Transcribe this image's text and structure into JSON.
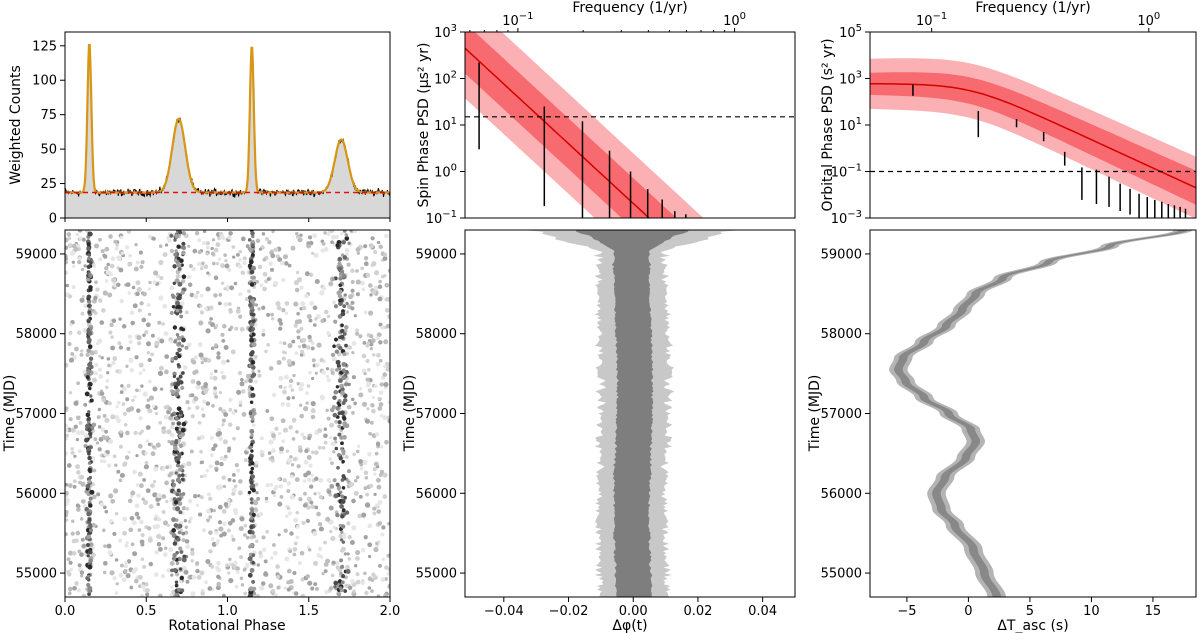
{
  "chart_data": [
    {
      "id": "pulse_profile",
      "type": "line",
      "ylabel": "Weighted Counts",
      "xlim": [
        0.0,
        2.0
      ],
      "ylim": [
        0,
        135
      ],
      "yticks": [
        0,
        25,
        50,
        75,
        100,
        125
      ],
      "background_level": 18.5,
      "peaks": [
        {
          "phase": 0.15,
          "height": 127,
          "width": 0.012
        },
        {
          "phase": 0.7,
          "height": 72,
          "width": 0.04
        },
        {
          "phase": 1.15,
          "height": 125,
          "width": 0.012
        },
        {
          "phase": 1.7,
          "height": 57,
          "width": 0.04
        }
      ],
      "colors": {
        "data": "#000000",
        "model": "#d89614",
        "fill": "#d8d8d8",
        "background_line": "#e01010"
      }
    },
    {
      "id": "spin_psd",
      "type": "line",
      "ylabel": "Spin Phase PSD (μs² yr)",
      "top_xlabel": "Frequency (1/yr)",
      "xscale": "log",
      "yscale": "log",
      "xlim": [
        0.057,
        1.9
      ],
      "ylim": [
        0.1,
        1000
      ],
      "top_ticks": [
        "10^-1",
        "10^0"
      ],
      "yticks": [
        "10^-1",
        "10^0",
        "10^1",
        "10^2",
        "10^3"
      ],
      "noise_level": 15,
      "model": {
        "amplitude_at_0_1": 40,
        "slope": -4.3,
        "outer_band_factor": 12,
        "inner_band_factor": 3.5
      },
      "points": [
        {
          "f": 0.0662,
          "lo": 3,
          "hi": 220
        },
        {
          "f": 0.1324,
          "lo": 0.18,
          "hi": 25
        },
        {
          "f": 0.1986,
          "lo": 0.1,
          "hi": 12
        },
        {
          "f": 0.2648,
          "lo": 0.1,
          "hi": 2.8
        },
        {
          "f": 0.331,
          "lo": 0.1,
          "hi": 1.0
        },
        {
          "f": 0.3972,
          "lo": 0.1,
          "hi": 0.42
        },
        {
          "f": 0.4634,
          "lo": 0.1,
          "hi": 0.25
        },
        {
          "f": 0.5296,
          "lo": 0.1,
          "hi": 0.14
        },
        {
          "f": 0.5958,
          "lo": 0.1,
          "hi": 0.12
        }
      ]
    },
    {
      "id": "orbital_psd",
      "type": "line",
      "ylabel": "Orbital Phase PSD (s² yr)",
      "top_xlabel": "Frequency (1/yr)",
      "xscale": "log",
      "yscale": "log",
      "xlim": [
        0.052,
        1.65
      ],
      "ylim": [
        0.001,
        100000
      ],
      "top_ticks": [
        "10^-1",
        "10^0"
      ],
      "yticks": [
        "10^-3",
        "10^-1",
        "10^1",
        "10^3",
        "10^5"
      ],
      "noise_level": 0.1,
      "model": {
        "low_freq_level": 600,
        "knee": 0.15,
        "slope": -4.3
      },
      "points": [
        {
          "f": 0.082,
          "lo": 180,
          "hi": 550
        },
        {
          "f": 0.164,
          "lo": 3,
          "hi": 40
        },
        {
          "f": 0.246,
          "lo": 8,
          "hi": 18
        },
        {
          "f": 0.328,
          "lo": 2,
          "hi": 5
        },
        {
          "f": 0.41,
          "lo": 0.18,
          "hi": 0.7
        },
        {
          "f": 0.492,
          "lo": 0.006,
          "hi": 0.15
        },
        {
          "f": 0.574,
          "lo": 0.004,
          "hi": 0.12
        },
        {
          "f": 0.656,
          "lo": 0.003,
          "hi": 0.06
        },
        {
          "f": 0.738,
          "lo": 0.002,
          "hi": 0.03
        },
        {
          "f": 0.82,
          "lo": 0.0014,
          "hi": 0.018
        },
        {
          "f": 0.902,
          "lo": 0.001,
          "hi": 0.011
        },
        {
          "f": 0.984,
          "lo": 0.001,
          "hi": 0.008
        },
        {
          "f": 1.066,
          "lo": 0.001,
          "hi": 0.006
        },
        {
          "f": 1.148,
          "lo": 0.001,
          "hi": 0.005
        },
        {
          "f": 1.23,
          "lo": 0.001,
          "hi": 0.004
        },
        {
          "f": 1.312,
          "lo": 0.001,
          "hi": 0.0035
        },
        {
          "f": 1.394,
          "lo": 0.001,
          "hi": 0.003
        },
        {
          "f": 1.476,
          "lo": 0.001,
          "hi": 0.0025
        }
      ]
    },
    {
      "id": "phaseogram",
      "type": "scatter",
      "xlabel": "Rotational Phase",
      "ylabel": "Time (MJD)",
      "xlim": [
        0.0,
        2.0
      ],
      "ylim": [
        54700,
        59300
      ],
      "xticks": [
        "0.0",
        "0.5",
        "1.0",
        "1.5",
        "2.0"
      ],
      "yticks": [
        55000,
        56000,
        57000,
        58000,
        59000
      ],
      "peak_phases": [
        0.15,
        0.7,
        1.15,
        1.7
      ],
      "gap_mjd": 58200
    },
    {
      "id": "spin_residuals",
      "type": "area",
      "xlabel": "Δφ(t)",
      "ylabel": "Time (MJD)",
      "xlim": [
        -0.052,
        0.05
      ],
      "ylim": [
        54700,
        59300
      ],
      "xticks": [
        "−0.04",
        "−0.02",
        "0.00",
        "0.02",
        "0.04"
      ],
      "yticks": [
        55000,
        56000,
        57000,
        58000,
        59000
      ],
      "inner_halfwidth": 0.0055,
      "outer_halfwidth": 0.0105
    },
    {
      "id": "orbital_residuals",
      "type": "area",
      "xlabel": "ΔT_asc (s)",
      "ylabel": "Time (MJD)",
      "xlim": [
        -8,
        18.5
      ],
      "ylim": [
        54700,
        59300
      ],
      "xticks": [
        "−5",
        "0",
        "5",
        "10",
        "15"
      ],
      "yticks": [
        55000,
        56000,
        57000,
        58000,
        59000
      ],
      "curve": [
        [
          54700,
          2.3
        ],
        [
          55000,
          1.3
        ],
        [
          55300,
          0.4
        ],
        [
          55600,
          -1.1
        ],
        [
          55800,
          -2.2
        ],
        [
          56000,
          -2.6
        ],
        [
          56200,
          -1.9
        ],
        [
          56450,
          -0.2
        ],
        [
          56650,
          0.6
        ],
        [
          56800,
          0.2
        ],
        [
          57000,
          -1.6
        ],
        [
          57200,
          -3.6
        ],
        [
          57400,
          -5.1
        ],
        [
          57550,
          -5.7
        ],
        [
          57700,
          -5.3
        ],
        [
          57900,
          -3.6
        ],
        [
          58100,
          -1.8
        ],
        [
          58300,
          -0.5
        ],
        [
          58500,
          0.6
        ],
        [
          58700,
          2.8
        ],
        [
          58900,
          6.5
        ],
        [
          59100,
          11.5
        ],
        [
          59300,
          17.5
        ]
      ],
      "inner_halfwidth": 0.35,
      "outer_halfwidth": 0.75
    }
  ]
}
